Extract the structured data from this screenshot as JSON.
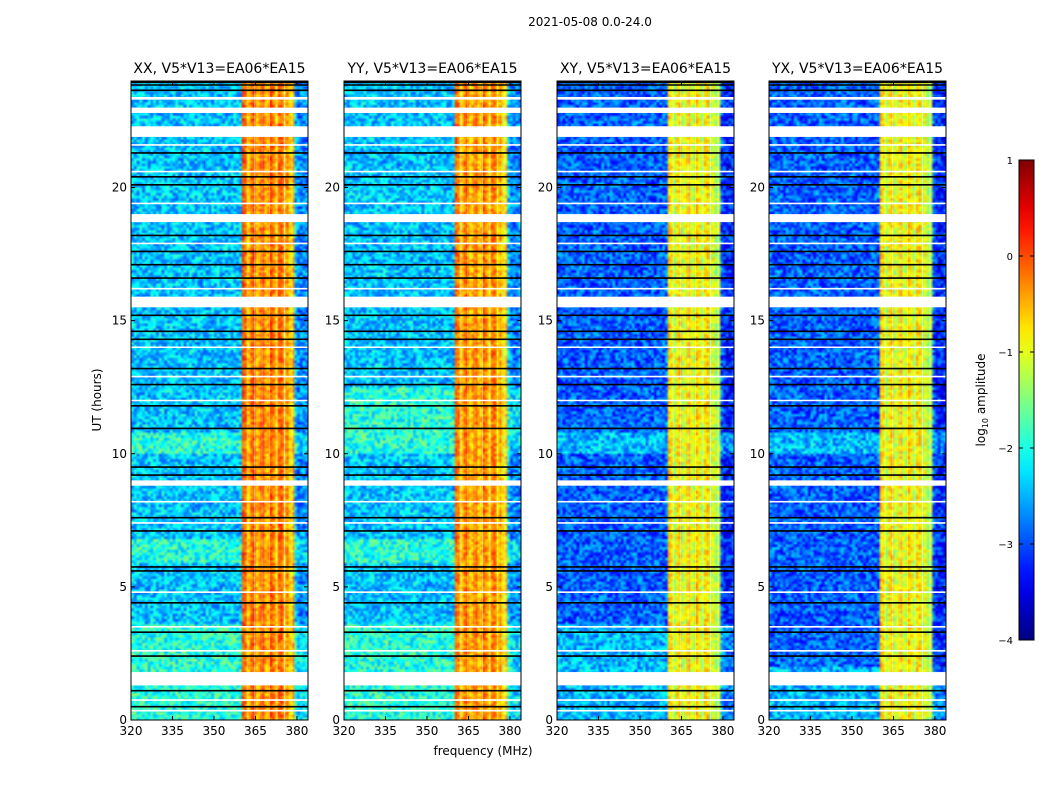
{
  "figure": {
    "suptitle": "2021-05-08 0.0-24.0",
    "xlabel": "frequency (MHz)",
    "ylabel": "UT (hours)",
    "colorbar_label": "log10 amplitude",
    "colorbar_label_main": "log",
    "colorbar_label_sub": "10",
    "colorbar_label_rest": " amplitude"
  },
  "colors": {
    "background": "#ffffff",
    "flag": "#ffffff",
    "dark_line": "#000000",
    "colormap": "jet"
  },
  "chart_data": {
    "type": "heatmap",
    "colormap": "jet",
    "xlim": [
      320,
      384
    ],
    "ylim": [
      0,
      24
    ],
    "xticks": [
      320,
      335,
      350,
      365,
      380
    ],
    "yticks": [
      0,
      5,
      10,
      15,
      20
    ],
    "xtick_labels": [
      "320",
      "335",
      "350",
      "365",
      "380"
    ],
    "ytick_labels": [
      "0",
      "5",
      "10",
      "15",
      "20"
    ],
    "colorbar": {
      "range": [
        -4,
        1
      ],
      "ticks": [
        1,
        0,
        -1,
        -2,
        -3,
        -4
      ],
      "tick_labels": [
        "1",
        "0",
        "−1",
        "−2",
        "−3",
        "−4"
      ]
    },
    "hot_band_mhz": [
      360,
      379
    ],
    "panels": [
      {
        "title": "XX, V5*V13=EA06*EA15",
        "baseline_level": -2.4,
        "hot_level": -0.3,
        "bright_periods_h": [
          [
            10.0,
            10.8
          ],
          [
            5.9,
            6.8
          ],
          [
            0.0,
            3.6
          ]
        ],
        "flagged_h": [
          [
            1.3,
            1.8
          ],
          [
            8.8,
            9.0
          ],
          [
            15.5,
            15.9
          ],
          [
            18.7,
            19.0
          ],
          [
            21.9,
            22.3
          ],
          [
            22.8,
            23.0
          ],
          [
            23.3,
            23.4
          ]
        ]
      },
      {
        "title": "YY, V5*V13=EA06*EA15",
        "baseline_level": -2.4,
        "hot_level": -0.4,
        "bright_periods_h": [
          [
            10.0,
            12.5
          ],
          [
            5.9,
            6.8
          ],
          [
            0.0,
            3.6
          ]
        ],
        "flagged_h": [
          [
            1.3,
            1.8
          ],
          [
            8.8,
            9.0
          ],
          [
            15.5,
            15.9
          ],
          [
            18.7,
            19.0
          ],
          [
            21.9,
            22.3
          ],
          [
            22.8,
            23.0
          ],
          [
            23.3,
            23.4
          ]
        ]
      },
      {
        "title": "XY, V5*V13=EA06*EA15",
        "baseline_level": -2.9,
        "hot_level": -0.9,
        "bright_periods_h": [
          [
            10.0,
            10.8
          ],
          [
            0.0,
            3.6
          ]
        ],
        "flagged_h": [
          [
            1.3,
            1.8
          ],
          [
            8.8,
            9.0
          ],
          [
            15.5,
            15.9
          ],
          [
            18.7,
            19.0
          ],
          [
            21.9,
            22.3
          ],
          [
            22.8,
            23.0
          ],
          [
            23.3,
            23.4
          ]
        ]
      },
      {
        "title": "YX, V5*V13=EA06*EA15",
        "baseline_level": -2.9,
        "hot_level": -0.9,
        "bright_periods_h": [
          [
            10.0,
            10.8
          ],
          [
            0.0,
            2.0
          ]
        ],
        "flagged_h": [
          [
            1.3,
            1.8
          ],
          [
            8.8,
            9.0
          ],
          [
            15.5,
            15.9
          ],
          [
            18.7,
            19.0
          ],
          [
            21.9,
            22.3
          ],
          [
            22.8,
            23.0
          ],
          [
            23.3,
            23.4
          ]
        ]
      }
    ],
    "dark_rows_h": [
      0.5,
      1.1,
      2.4,
      3.3,
      4.4,
      5.6,
      5.75,
      7.1,
      7.6,
      9.2,
      9.5,
      10.95,
      11.8,
      12.6,
      13.2,
      14.3,
      14.6,
      15.2,
      16.6,
      17.1,
      17.6,
      18.2,
      20.1,
      20.4,
      21.3,
      23.65,
      23.85,
      23.95
    ],
    "white_rows_h": [
      0.35,
      0.75,
      2.6,
      3.5,
      4.8,
      7.4,
      8.2,
      12.0,
      12.9,
      14.0,
      16.2,
      17.9,
      19.4,
      20.6,
      21.6
    ]
  }
}
